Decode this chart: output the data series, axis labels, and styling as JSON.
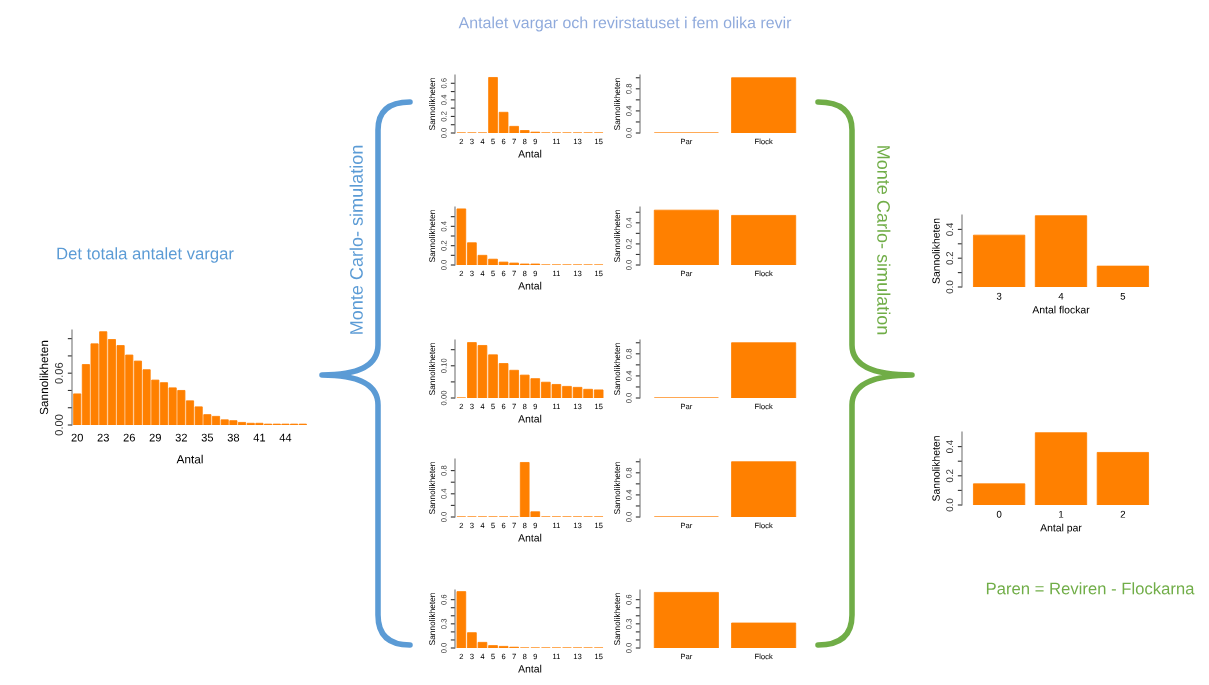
{
  "chart_data": [
    {
      "type": "bar",
      "title": "Det totala antalet vargar",
      "xlabel": "Antal",
      "ylabel": "Sannolikheten",
      "annotations": [
        "Monte Carlo- simulation"
      ],
      "color": "#ff8000",
      "categories": [
        "20",
        null,
        null,
        "23",
        null,
        null,
        "26",
        null,
        null,
        "29",
        null,
        null,
        "32",
        null,
        null,
        "35",
        null,
        null,
        "38",
        null,
        null,
        "41",
        null,
        null,
        "44",
        null,
        null
      ],
      "values": [
        0.036,
        0.07,
        0.094,
        0.108,
        0.099,
        0.092,
        0.081,
        0.074,
        0.064,
        0.052,
        0.049,
        0.043,
        0.04,
        0.028,
        0.021,
        0.012,
        0.01,
        0.006,
        0.005,
        0.003,
        0.002,
        0.002,
        0.001,
        0.001,
        0.001,
        0.001,
        0.001
      ],
      "ylim": [
        0,
        0.11
      ],
      "yticks": [
        {
          "value": 0,
          "label": "0.00"
        },
        {
          "value": 0.02,
          "label": null
        },
        {
          "value": 0.04,
          "label": null
        },
        {
          "value": 0.06,
          "label": "0.06"
        },
        {
          "value": 0.08,
          "label": null
        },
        {
          "value": 0.1,
          "label": null
        }
      ]
    },
    {
      "type": "bar",
      "title": "Antalet vargar och revirstatuset i fem olika revir",
      "xlabel": "Antal",
      "ylabel": "Sannolikheten",
      "color": "#ff8000",
      "categories": [
        "2",
        "3",
        "4",
        "5",
        "6",
        "7",
        "8",
        "9",
        null,
        "11",
        null,
        "13",
        null,
        "15"
      ],
      "values": [
        0,
        0,
        0,
        0.67,
        0.25,
        0.08,
        0.03,
        0.01,
        0,
        0,
        0,
        0,
        0,
        0
      ],
      "ylim": [
        0,
        0.7
      ],
      "yticks": [
        {
          "value": 0,
          "label": "0.0"
        },
        {
          "value": 0.1,
          "label": null
        },
        {
          "value": 0.2,
          "label": "0.2"
        },
        {
          "value": 0.3,
          "label": null
        },
        {
          "value": 0.4,
          "label": "0.4"
        },
        {
          "value": 0.5,
          "label": null
        },
        {
          "value": 0.6,
          "label": "0.6"
        }
      ]
    },
    {
      "type": "bar",
      "ylabel": "Sannolikheten",
      "color": "#ff8000",
      "categories": [
        "Par",
        "Flock"
      ],
      "values": [
        0,
        1.0
      ],
      "ylim": [
        0,
        1.05
      ],
      "yticks": [
        {
          "value": 0,
          "label": "0.0"
        },
        {
          "value": 0.2,
          "label": null
        },
        {
          "value": 0.4,
          "label": "0.4"
        },
        {
          "value": 0.6,
          "label": null
        },
        {
          "value": 0.8,
          "label": "0.8"
        },
        {
          "value": 1.0,
          "label": null
        }
      ]
    },
    {
      "type": "bar",
      "xlabel": "Antal",
      "ylabel": "Sannolikheten",
      "color": "#ff8000",
      "categories": [
        "2",
        "3",
        "4",
        "5",
        "6",
        "7",
        "8",
        "9",
        null,
        "11",
        null,
        "13",
        null,
        "15"
      ],
      "values": [
        0.58,
        0.23,
        0.1,
        0.06,
        0.03,
        0.02,
        0.01,
        0.01,
        0,
        0,
        0,
        0,
        0,
        0
      ],
      "ylim": [
        0,
        0.6
      ],
      "yticks": [
        {
          "value": 0,
          "label": "0.0"
        },
        {
          "value": 0.1,
          "label": null
        },
        {
          "value": 0.2,
          "label": "0.2"
        },
        {
          "value": 0.3,
          "label": null
        },
        {
          "value": 0.4,
          "label": "0.4"
        },
        {
          "value": 0.5,
          "label": null
        }
      ]
    },
    {
      "type": "bar",
      "ylabel": "Sannolikheten",
      "color": "#ff8000",
      "categories": [
        "Par",
        "Flock"
      ],
      "values": [
        0.52,
        0.47
      ],
      "ylim": [
        0,
        0.55
      ],
      "yticks": [
        {
          "value": 0,
          "label": "0.0"
        },
        {
          "value": 0.1,
          "label": null
        },
        {
          "value": 0.2,
          "label": "0.2"
        },
        {
          "value": 0.3,
          "label": null
        },
        {
          "value": 0.4,
          "label": "0.4"
        },
        {
          "value": 0.5,
          "label": null
        }
      ]
    },
    {
      "type": "bar",
      "xlabel": "Antal",
      "ylabel": "Sannolikheten",
      "color": "#ff8000",
      "categories": [
        "2",
        "3",
        "4",
        "5",
        "6",
        "7",
        "8",
        "9",
        null,
        "11",
        null,
        "13",
        null,
        "15"
      ],
      "values": [
        0,
        0.172,
        0.163,
        0.134,
        0.107,
        0.086,
        0.071,
        0.06,
        0.049,
        0.042,
        0.036,
        0.033,
        0.027,
        0.025
      ],
      "ylim": [
        0,
        0.18
      ],
      "yticks": [
        {
          "value": 0,
          "label": "0.00"
        },
        {
          "value": 0.05,
          "label": null
        },
        {
          "value": 0.1,
          "label": "0.10"
        },
        {
          "value": 0.15,
          "label": null
        }
      ]
    },
    {
      "type": "bar",
      "ylabel": "Sannolikheten",
      "color": "#ff8000",
      "categories": [
        "Par",
        "Flock"
      ],
      "values": [
        0,
        1.0
      ],
      "ylim": [
        0,
        1.05
      ],
      "yticks": [
        {
          "value": 0,
          "label": "0.0"
        },
        {
          "value": 0.2,
          "label": null
        },
        {
          "value": 0.4,
          "label": "0.4"
        },
        {
          "value": 0.6,
          "label": null
        },
        {
          "value": 0.8,
          "label": "0.8"
        },
        {
          "value": 1.0,
          "label": null
        }
      ]
    },
    {
      "type": "bar",
      "xlabel": "Antal",
      "ylabel": "Sannolikheten",
      "color": "#ff8000",
      "categories": [
        "2",
        "3",
        "4",
        "5",
        "6",
        "7",
        "8",
        "9",
        null,
        "11",
        null,
        "13",
        null,
        "15"
      ],
      "values": [
        0,
        0,
        0,
        0,
        0,
        0,
        0.94,
        0.09,
        0,
        0,
        0,
        0,
        0,
        0
      ],
      "ylim": [
        0,
        1.0
      ],
      "yticks": [
        {
          "value": 0,
          "label": "0.0"
        },
        {
          "value": 0.2,
          "label": null
        },
        {
          "value": 0.4,
          "label": "0.4"
        },
        {
          "value": 0.6,
          "label": null
        },
        {
          "value": 0.8,
          "label": "0.8"
        }
      ]
    },
    {
      "type": "bar",
      "ylabel": "Sannolikheten",
      "color": "#ff8000",
      "categories": [
        "Par",
        "Flock"
      ],
      "values": [
        0,
        1.0
      ],
      "ylim": [
        0,
        1.05
      ],
      "yticks": [
        {
          "value": 0,
          "label": "0.0"
        },
        {
          "value": 0.2,
          "label": null
        },
        {
          "value": 0.4,
          "label": "0.4"
        },
        {
          "value": 0.6,
          "label": null
        },
        {
          "value": 0.8,
          "label": "0.8"
        },
        {
          "value": 1.0,
          "label": null
        }
      ]
    },
    {
      "type": "bar",
      "xlabel": "Antal",
      "ylabel": "Sannolikheten",
      "color": "#ff8000",
      "categories": [
        "2",
        "3",
        "4",
        "5",
        "6",
        "7",
        "8",
        "9",
        null,
        "11",
        null,
        "13",
        null,
        "15"
      ],
      "values": [
        0.7,
        0.19,
        0.07,
        0.03,
        0.02,
        0.01,
        0,
        0,
        0,
        0,
        0,
        0,
        0,
        0
      ],
      "ylim": [
        0,
        0.72
      ],
      "yticks": [
        {
          "value": 0,
          "label": "0.0"
        },
        {
          "value": 0.1,
          "label": null
        },
        {
          "value": 0.2,
          "label": null
        },
        {
          "value": 0.3,
          "label": "0.3"
        },
        {
          "value": 0.4,
          "label": null
        },
        {
          "value": 0.5,
          "label": null
        },
        {
          "value": 0.6,
          "label": "0.6"
        }
      ]
    },
    {
      "type": "bar",
      "ylabel": "Sannolikheten",
      "color": "#ff8000",
      "categories": [
        "Par",
        "Flock"
      ],
      "values": [
        0.69,
        0.31
      ],
      "ylim": [
        0,
        0.72
      ],
      "yticks": [
        {
          "value": 0,
          "label": "0.0"
        },
        {
          "value": 0.1,
          "label": null
        },
        {
          "value": 0.2,
          "label": null
        },
        {
          "value": 0.3,
          "label": "0.3"
        },
        {
          "value": 0.4,
          "label": null
        },
        {
          "value": 0.5,
          "label": null
        },
        {
          "value": 0.6,
          "label": "0.6"
        }
      ]
    },
    {
      "type": "bar",
      "xlabel": "Antal flockar",
      "ylabel": "Sannolikheten",
      "annotations": [
        "Monte Carlo- simulation"
      ],
      "color": "#ff8000",
      "categories": [
        "3",
        "4",
        "5"
      ],
      "values": [
        0.36,
        0.495,
        0.145
      ],
      "ylim": [
        0,
        0.5
      ],
      "yticks": [
        {
          "value": 0,
          "label": "0.0"
        },
        {
          "value": 0.1,
          "label": null
        },
        {
          "value": 0.2,
          "label": "0.2"
        },
        {
          "value": 0.3,
          "label": null
        },
        {
          "value": 0.4,
          "label": "0.4"
        }
      ]
    },
    {
      "type": "bar",
      "xlabel": "Antal par",
      "ylabel": "Sannolikheten",
      "annotations": [
        "Paren = Reviren - Flockarna"
      ],
      "color": "#ff8000",
      "categories": [
        "0",
        "1",
        "2"
      ],
      "values": [
        0.145,
        0.495,
        0.36
      ],
      "ylim": [
        0,
        0.5
      ],
      "yticks": [
        {
          "value": 0,
          "label": "0.0"
        },
        {
          "value": 0.1,
          "label": null
        },
        {
          "value": 0.2,
          "label": "0.2"
        },
        {
          "value": 0.3,
          "label": null
        },
        {
          "value": 0.4,
          "label": "0.4"
        }
      ]
    }
  ]
}
